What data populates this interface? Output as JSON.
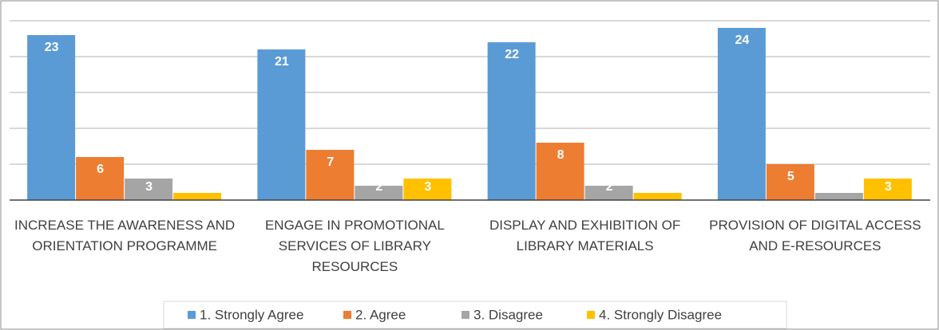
{
  "chart_data": {
    "type": "bar",
    "categories": [
      "INCREASE THE AWARENESS AND ORIENTATION PROGRAMME",
      "ENGAGE IN PROMOTIONAL SERVICES OF LIBRARY RESOURCES",
      "DISPLAY AND EXHIBITION OF LIBRARY MATERIALS",
      "PROVISION OF DIGITAL ACCESS AND E-RESOURCES"
    ],
    "series": [
      {
        "name": "1. Strongly Agree",
        "color": "#5b9bd5",
        "values": [
          23,
          21,
          22,
          24
        ]
      },
      {
        "name": "2. Agree",
        "color": "#ed7d31",
        "values": [
          6,
          7,
          8,
          5
        ]
      },
      {
        "name": "3. Disagree",
        "color": "#a5a5a5",
        "values": [
          3,
          2,
          2,
          1
        ]
      },
      {
        "name": "4. Strongly Disagree",
        "color": "#ffc000",
        "values": [
          1,
          3,
          1,
          3
        ]
      }
    ],
    "ylim": [
      0,
      25
    ],
    "yticks": [
      0,
      5,
      10,
      15,
      20,
      25
    ],
    "grid": true,
    "legend": "bottom"
  }
}
